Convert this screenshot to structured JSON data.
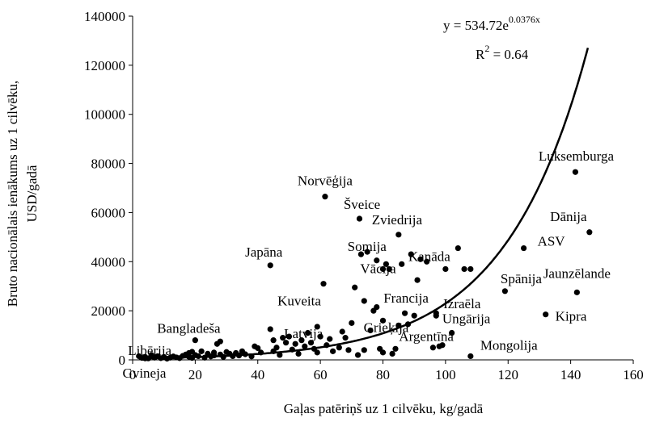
{
  "chart_data": {
    "type": "scatter",
    "xlabel": "Gaļas patēriņš uz 1 cilvēku, kg/gadā",
    "ylabel_lines": [
      "Bruto nacionālais ienākums uz 1 cilvēku,",
      "USD/gadā"
    ],
    "xlim": [
      0,
      160
    ],
    "ylim": [
      0,
      140000
    ],
    "xticks": [
      "0",
      "20",
      "40",
      "60",
      "80",
      "100",
      "120",
      "140",
      "160"
    ],
    "yticks": [
      "0",
      "20000",
      "40000",
      "60000",
      "80000",
      "100000",
      "120000",
      "140000"
    ],
    "grid": false,
    "legend": "none",
    "trendline": {
      "kind": "exponential",
      "a": 534.72,
      "b": 0.0376,
      "equation_main": "y = 534.72e",
      "equation_exp": "0.0376x",
      "r2_main": "R",
      "r2_sup": "2",
      "r2_value": " = 0.64"
    },
    "labeled_points": [
      {
        "name": "Norvēģija",
        "x": 61.5,
        "y": 66500
      },
      {
        "name": "Šveice",
        "x": 72.5,
        "y": 57500
      },
      {
        "name": "Zviedrija",
        "x": 85,
        "y": 51000
      },
      {
        "name": "Somija",
        "x": 78,
        "y": 40500
      },
      {
        "name": "Japāna",
        "x": 44,
        "y": 38500
      },
      {
        "name": "Vācija",
        "x": 80,
        "y": 37000
      },
      {
        "name": "Kanāda",
        "x": 100,
        "y": 37000
      },
      {
        "name": "Francija",
        "x": 91,
        "y": 32500
      },
      {
        "name": "Kuveita",
        "x": 61,
        "y": 31000
      },
      {
        "name": "Spānija",
        "x": 119,
        "y": 28000
      },
      {
        "name": "Jaunzēlande",
        "x": 142,
        "y": 27500
      },
      {
        "name": "Latvija",
        "x": 59,
        "y": 13500
      },
      {
        "name": "Grieķija",
        "x": 80,
        "y": 16000
      },
      {
        "name": "Izraēla",
        "x": 97,
        "y": 19000
      },
      {
        "name": "Kipra",
        "x": 132,
        "y": 18500
      },
      {
        "name": "Ungārija",
        "x": 102,
        "y": 11000
      },
      {
        "name": "Argentīna",
        "x": 98,
        "y": 5500
      },
      {
        "name": "Mongolija",
        "x": 108,
        "y": 1500
      },
      {
        "name": "Bangladeša",
        "x": 20,
        "y": 8000
      },
      {
        "name": "Libērija",
        "x": 6,
        "y": 2000
      },
      {
        "name": "Gvineja",
        "x": 4,
        "y": 600
      },
      {
        "name": "Luksemburga",
        "x": 141.5,
        "y": 76500
      },
      {
        "name": "Dānija",
        "x": 146,
        "y": 52000
      },
      {
        "name": "ASV",
        "x": 125,
        "y": 45500
      }
    ],
    "other_points": [
      [
        2,
        1500
      ],
      [
        3,
        800
      ],
      [
        4,
        1200
      ],
      [
        5,
        600
      ],
      [
        6,
        1800
      ],
      [
        7,
        900
      ],
      [
        8,
        1500
      ],
      [
        9,
        700
      ],
      [
        10,
        1200
      ],
      [
        11,
        500
      ],
      [
        12,
        900
      ],
      [
        13,
        1400
      ],
      [
        14,
        1000
      ],
      [
        15,
        700
      ],
      [
        16,
        1600
      ],
      [
        17,
        2200
      ],
      [
        18,
        2800
      ],
      [
        18,
        1300
      ],
      [
        19,
        3300
      ],
      [
        19,
        800
      ],
      [
        20,
        2000
      ],
      [
        21,
        1500
      ],
      [
        22,
        3500
      ],
      [
        23,
        900
      ],
      [
        24,
        2500
      ],
      [
        25,
        1400
      ],
      [
        26,
        3000
      ],
      [
        26,
        1800
      ],
      [
        27,
        6500
      ],
      [
        28,
        7500
      ],
      [
        28,
        2200
      ],
      [
        29,
        1200
      ],
      [
        30,
        3200
      ],
      [
        31,
        2500
      ],
      [
        32,
        1500
      ],
      [
        33,
        2800
      ],
      [
        34,
        1800
      ],
      [
        35,
        3500
      ],
      [
        36,
        2300
      ],
      [
        38,
        1400
      ],
      [
        39,
        5500
      ],
      [
        40,
        4800
      ],
      [
        41,
        3000
      ],
      [
        44,
        12500
      ],
      [
        45,
        8000
      ],
      [
        45,
        3500
      ],
      [
        46,
        5000
      ],
      [
        47,
        2000
      ],
      [
        48,
        9000
      ],
      [
        49,
        7000
      ],
      [
        50,
        9500
      ],
      [
        51,
        4200
      ],
      [
        52,
        6500
      ],
      [
        53,
        2500
      ],
      [
        54,
        8000
      ],
      [
        55,
        5500
      ],
      [
        56,
        11000
      ],
      [
        57,
        7000
      ],
      [
        58,
        4500
      ],
      [
        59,
        3000
      ],
      [
        60,
        9500
      ],
      [
        62,
        6000
      ],
      [
        63,
        8500
      ],
      [
        64,
        3500
      ],
      [
        66,
        5000
      ],
      [
        67,
        11500
      ],
      [
        68,
        9000
      ],
      [
        69,
        4000
      ],
      [
        70,
        15000
      ],
      [
        71,
        29500
      ],
      [
        72,
        2000
      ],
      [
        73,
        43000
      ],
      [
        74,
        24000
      ],
      [
        74,
        4000
      ],
      [
        75,
        44000
      ],
      [
        76,
        12000
      ],
      [
        77,
        20000
      ],
      [
        78,
        21500
      ],
      [
        79,
        4500
      ],
      [
        80,
        3000
      ],
      [
        81,
        39000
      ],
      [
        82,
        37000
      ],
      [
        83,
        2500
      ],
      [
        84,
        4500
      ],
      [
        85,
        14000
      ],
      [
        86,
        39000
      ],
      [
        87,
        19000
      ],
      [
        88,
        14500
      ],
      [
        89,
        43000
      ],
      [
        90,
        18000
      ],
      [
        92,
        41000
      ],
      [
        94,
        40000
      ],
      [
        96,
        5000
      ],
      [
        97,
        18000
      ],
      [
        99,
        6000
      ],
      [
        104,
        45500
      ],
      [
        106,
        37000
      ],
      [
        108,
        37000
      ]
    ]
  }
}
